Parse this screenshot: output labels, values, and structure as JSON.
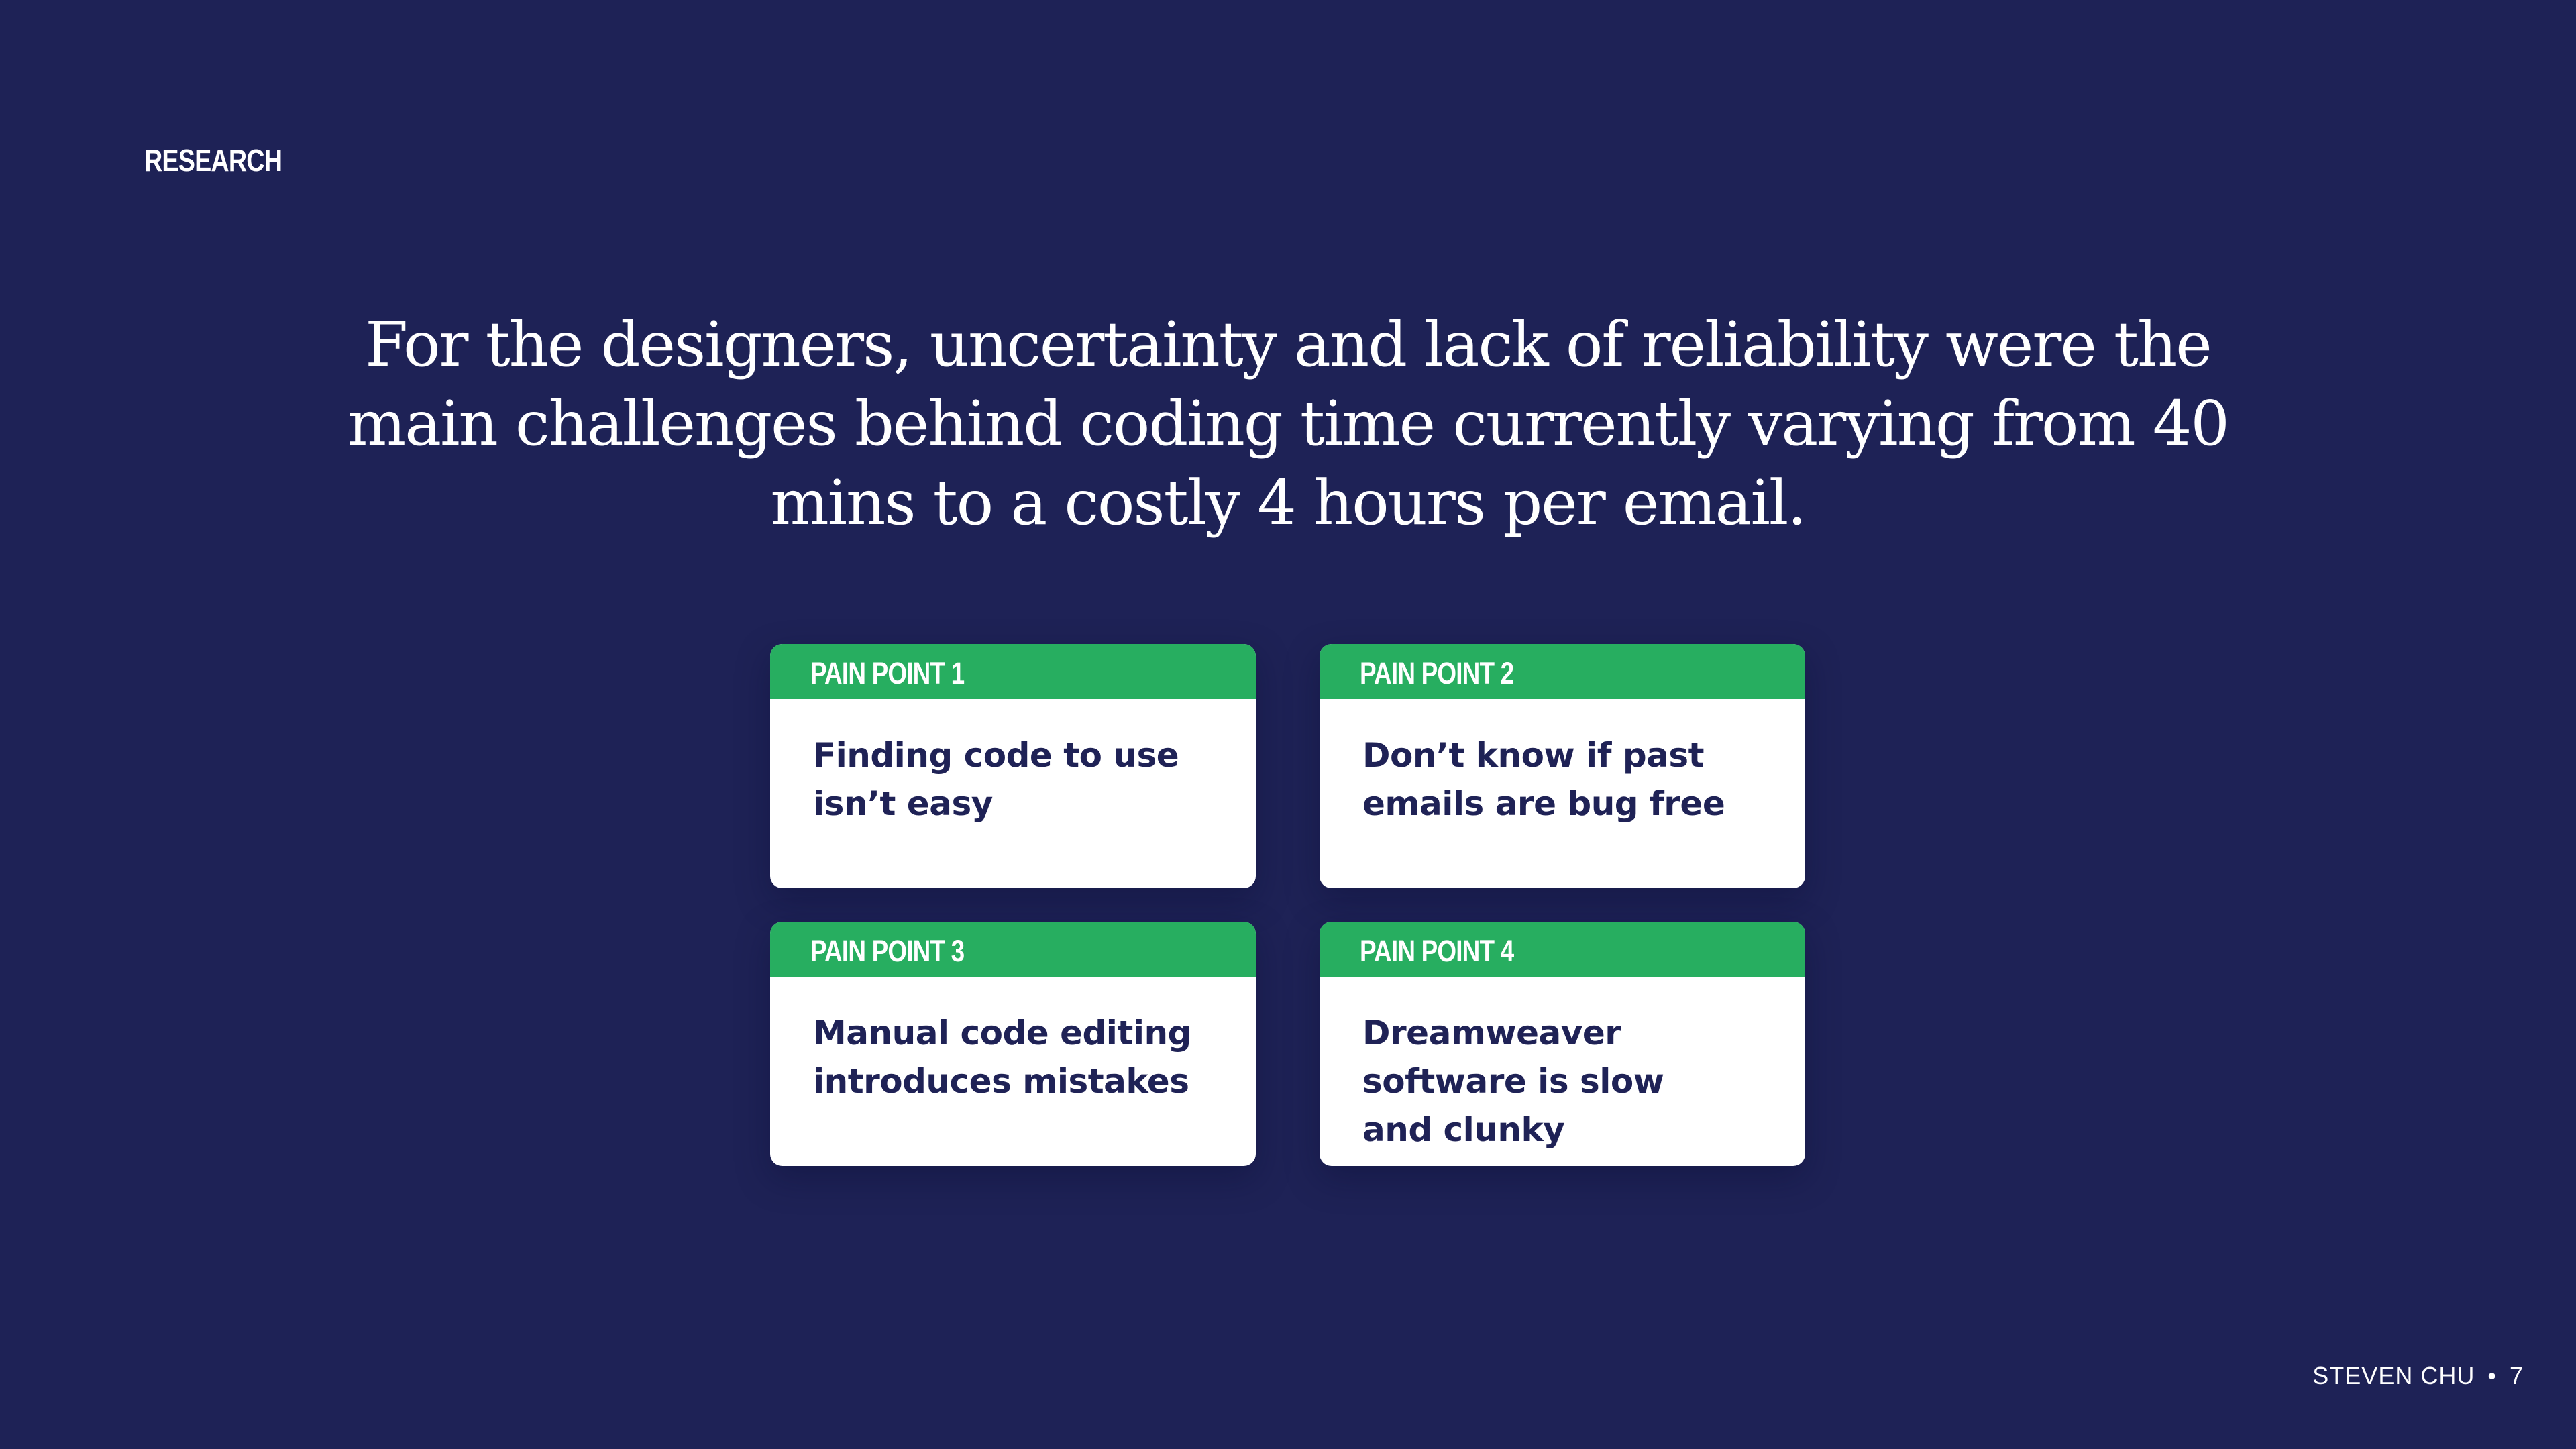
{
  "slide": {
    "section_label": "RESEARCH",
    "headline": "For the designers, uncertainty and lack of reliability were the main challenges behind coding time currently varying from 40 mins to a costly 4 hours per email."
  },
  "pain_points": [
    {
      "tag": "PAIN POINT 1",
      "text": "Finding code to use isn’t easy"
    },
    {
      "tag": "PAIN POINT 2",
      "text": "Don’t know if past emails are bug free"
    },
    {
      "tag": "PAIN POINT 3",
      "text": "Manual code editing introduces mistakes"
    },
    {
      "tag": "PAIN POINT 4",
      "text": "Dreamweaver software is slow and clunky"
    }
  ],
  "footer": {
    "author": "STEVEN CHU",
    "separator": "•",
    "page_number": "7"
  },
  "colors": {
    "background": "#1e2256",
    "accent_green": "#27ae60",
    "card_background": "#ffffff",
    "card_text": "#1f2256"
  }
}
